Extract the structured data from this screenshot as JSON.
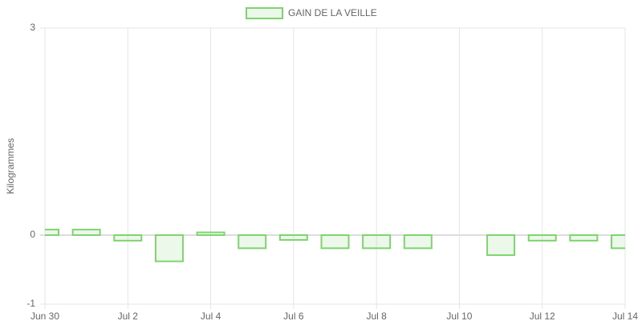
{
  "chart_data": {
    "type": "bar",
    "y_label": "Kilogrammes",
    "categories": [
      "Jun 30",
      null,
      "Jul 2",
      null,
      "Jul 4",
      null,
      "Jul 6",
      null,
      "Jul 8",
      null,
      "Jul 10",
      null,
      "Jul 12",
      null,
      "Jul 14"
    ],
    "series": [
      {
        "name": "GAIN DE LA VEILLE",
        "color": "#7fd46f",
        "values": [
          0.08,
          0.08,
          -0.08,
          -0.38,
          0.04,
          -0.19,
          -0.07,
          -0.19,
          -0.19,
          -0.19,
          null,
          -0.29,
          -0.08,
          -0.08,
          -0.19
        ]
      }
    ],
    "ylim": [
      -1,
      3
    ],
    "yticks": [
      -1,
      0,
      3
    ],
    "grid": true
  }
}
